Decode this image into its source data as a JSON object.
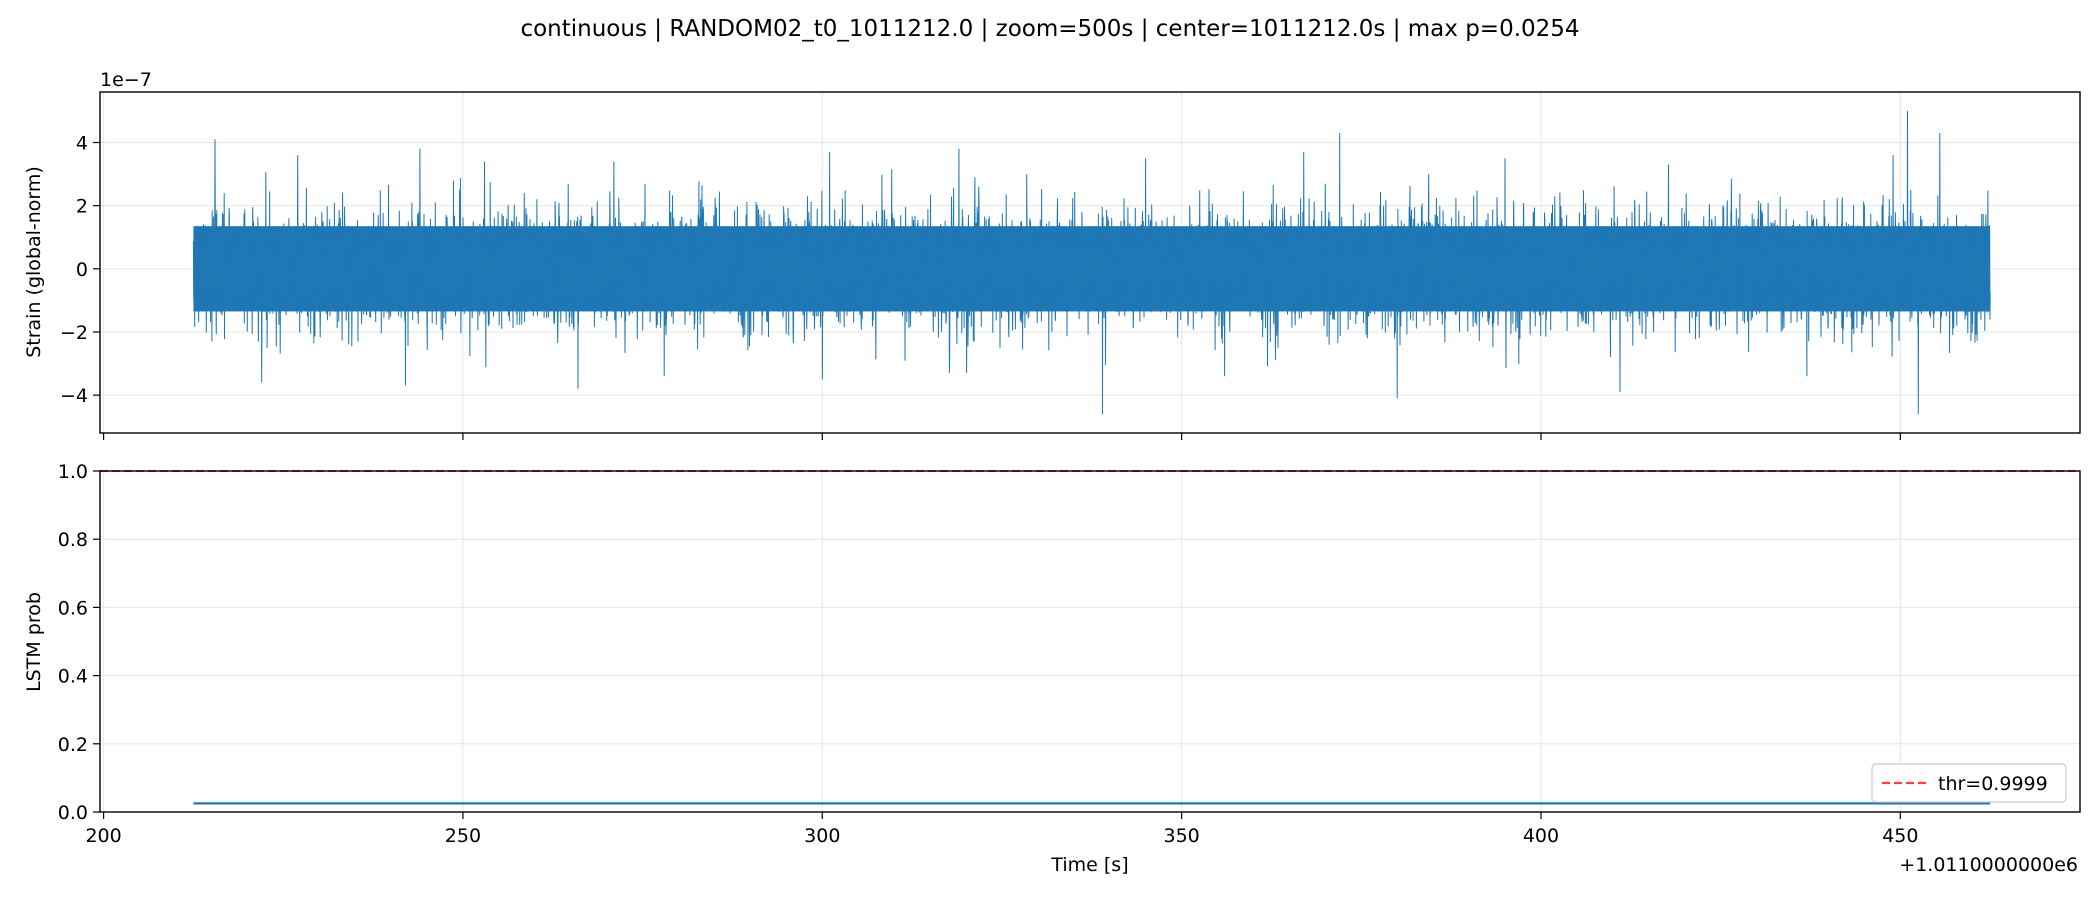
{
  "figure": {
    "title": "continuous | RANDOM02_t0_1011212.0 | zoom=500s | center=1011212.0s | max p=0.0254"
  },
  "chart_data": [
    {
      "type": "line",
      "panel": "top",
      "ylabel": "Strain (global-norm)",
      "y_multiplier": "1e−7",
      "ylim": [
        -5.2,
        5.6
      ],
      "yticks": [
        -4,
        -2,
        0,
        2,
        4
      ],
      "ytick_labels": [
        "−4",
        "−2",
        "0",
        "2",
        "4"
      ],
      "xlim": [
        199.5,
        475.0
      ],
      "grid": true,
      "series": [
        {
          "color": "#1f77b4",
          "x_range": [
            212.5,
            462.5
          ],
          "amplitude_note": "dense noise, roughly ±2 with peaks near 5",
          "peaks": [
            {
              "x": 215.5,
              "y": 4.1
            },
            {
              "x": 227.0,
              "y": 3.6
            },
            {
              "x": 244.0,
              "y": 3.8
            },
            {
              "x": 253.0,
              "y": 3.4
            },
            {
              "x": 271.0,
              "y": 3.4
            },
            {
              "x": 301.0,
              "y": 3.7
            },
            {
              "x": 319.0,
              "y": 3.8
            },
            {
              "x": 345.0,
              "y": 3.5
            },
            {
              "x": 367.0,
              "y": 3.7
            },
            {
              "x": 372.0,
              "y": 4.3
            },
            {
              "x": 395.0,
              "y": 3.5
            },
            {
              "x": 449.0,
              "y": 3.6
            },
            {
              "x": 451.0,
              "y": 5.0
            },
            {
              "x": 455.5,
              "y": 4.3
            }
          ],
          "troughs": [
            {
              "x": 222.0,
              "y": -3.6
            },
            {
              "x": 242.0,
              "y": -3.7
            },
            {
              "x": 266.0,
              "y": -3.8
            },
            {
              "x": 278.0,
              "y": -3.4
            },
            {
              "x": 300.0,
              "y": -3.5
            },
            {
              "x": 319.0,
              "y": -4.1
            },
            {
              "x": 339.0,
              "y": -4.6
            },
            {
              "x": 356.0,
              "y": -3.4
            },
            {
              "x": 372.0,
              "y": -4.1
            },
            {
              "x": 380.0,
              "y": -4.1
            },
            {
              "x": 411.0,
              "y": -3.9
            },
            {
              "x": 437.0,
              "y": -3.4
            },
            {
              "x": 451.0,
              "y": -4.2
            },
            {
              "x": 452.5,
              "y": -4.6
            }
          ]
        }
      ]
    },
    {
      "type": "line",
      "panel": "bottom",
      "ylabel": "LSTM prob",
      "xlabel": "Time [s]",
      "x_offset_label": "+1.0110000000e6",
      "ylim": [
        0.0,
        1.0
      ],
      "yticks": [
        0.0,
        0.2,
        0.4,
        0.6,
        0.8,
        1.0
      ],
      "ytick_labels": [
        "0.0",
        "0.2",
        "0.4",
        "0.6",
        "0.8",
        "1.0"
      ],
      "xlim": [
        199.5,
        475.0
      ],
      "xticks": [
        200,
        250,
        300,
        350,
        400,
        450
      ],
      "xtick_labels": [
        "200",
        "250",
        "300",
        "350",
        "400",
        "450"
      ],
      "grid": true,
      "legend_position": "lower-right",
      "series": [
        {
          "color": "#1f77b4",
          "x": [
            212.5,
            462.5
          ],
          "y": [
            0.0254,
            0.0254
          ]
        }
      ],
      "threshold": {
        "name": "thr=0.9999",
        "value": 0.9999,
        "color": "#ff0000",
        "style": "dashed"
      }
    }
  ]
}
